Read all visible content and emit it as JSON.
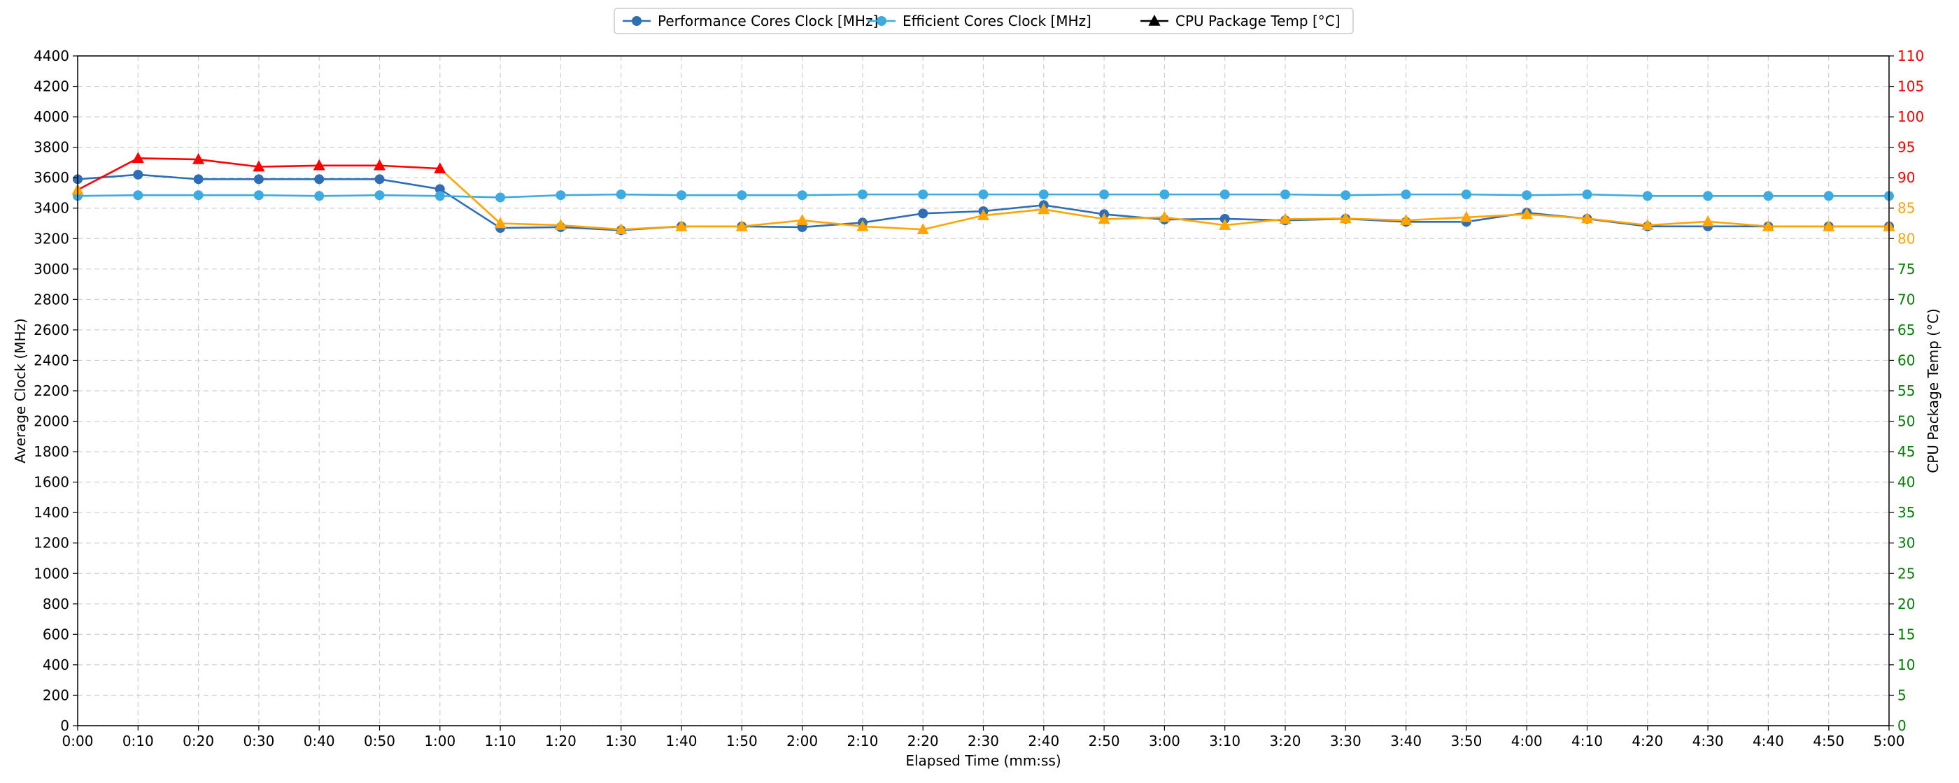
{
  "chart_data": {
    "type": "line",
    "title": "",
    "xlabel": "Elapsed Time (mm:ss)",
    "ylabel": "Average Clock (MHz)",
    "y2label": "CPU Package Temp (°C)",
    "ylim": [
      0,
      4400
    ],
    "y2lim": [
      0,
      110
    ],
    "grid": true,
    "legend_position": "top-center",
    "categories": [
      "0:00",
      "0:10",
      "0:20",
      "0:30",
      "0:40",
      "0:50",
      "1:00",
      "1:10",
      "1:20",
      "1:30",
      "1:40",
      "1:50",
      "2:00",
      "2:10",
      "2:20",
      "2:30",
      "2:40",
      "2:50",
      "3:00",
      "3:10",
      "3:20",
      "3:30",
      "3:40",
      "3:50",
      "4:00",
      "4:10",
      "4:20",
      "4:30",
      "4:40",
      "4:50",
      "5:00"
    ],
    "y_ticks": [
      0,
      200,
      400,
      600,
      800,
      1000,
      1200,
      1400,
      1600,
      1800,
      2000,
      2200,
      2400,
      2600,
      2800,
      3000,
      3200,
      3400,
      3600,
      3800,
      4000,
      4200,
      4400
    ],
    "y2_ticks": [
      0,
      5,
      10,
      15,
      20,
      25,
      30,
      35,
      40,
      45,
      50,
      55,
      60,
      65,
      70,
      75,
      80,
      85,
      90,
      95,
      100,
      105,
      110
    ],
    "temp_tick_colors": {
      "green_below": 80,
      "orange_below": 90,
      "green": "#008000",
      "orange": "#FFA500",
      "red": "#FF0000"
    },
    "series": [
      {
        "name": "Performance Cores Clock [MHz]",
        "axis": "left",
        "color": "#2F6DB5",
        "marker": "circle",
        "values": [
          3590,
          3620,
          3590,
          3590,
          3590,
          3590,
          3525,
          3270,
          3275,
          3255,
          3280,
          3280,
          3275,
          3305,
          3365,
          3380,
          3420,
          3360,
          3325,
          3330,
          3320,
          3330,
          3310,
          3310,
          3370,
          3330,
          3280,
          3280,
          3280,
          3280,
          3280
        ]
      },
      {
        "name": "Efficient Cores Clock [MHz]",
        "axis": "left",
        "color": "#3EABE0",
        "marker": "circle",
        "values": [
          3480,
          3485,
          3485,
          3485,
          3480,
          3485,
          3480,
          3470,
          3485,
          3490,
          3485,
          3485,
          3485,
          3490,
          3490,
          3490,
          3490,
          3490,
          3490,
          3490,
          3490,
          3485,
          3490,
          3490,
          3485,
          3490,
          3480,
          3480,
          3480,
          3480,
          3480
        ]
      },
      {
        "name": "CPU Package Temp [°C]",
        "axis": "right",
        "color": "#000000",
        "marker": "triangle",
        "threshold_colors": {
          "hot": "#FF0000",
          "warm": "#FFA500",
          "hot_from": 90
        },
        "values": [
          88.0,
          93.2,
          93.0,
          91.8,
          92.0,
          92.0,
          91.5,
          82.5,
          82.2,
          81.5,
          82.0,
          82.0,
          83.0,
          82.0,
          81.5,
          83.8,
          84.8,
          83.2,
          83.5,
          82.2,
          83.2,
          83.3,
          83.0,
          83.5,
          84.0,
          83.3,
          82.2,
          82.8,
          82.0,
          82.0,
          82.0
        ]
      }
    ]
  }
}
